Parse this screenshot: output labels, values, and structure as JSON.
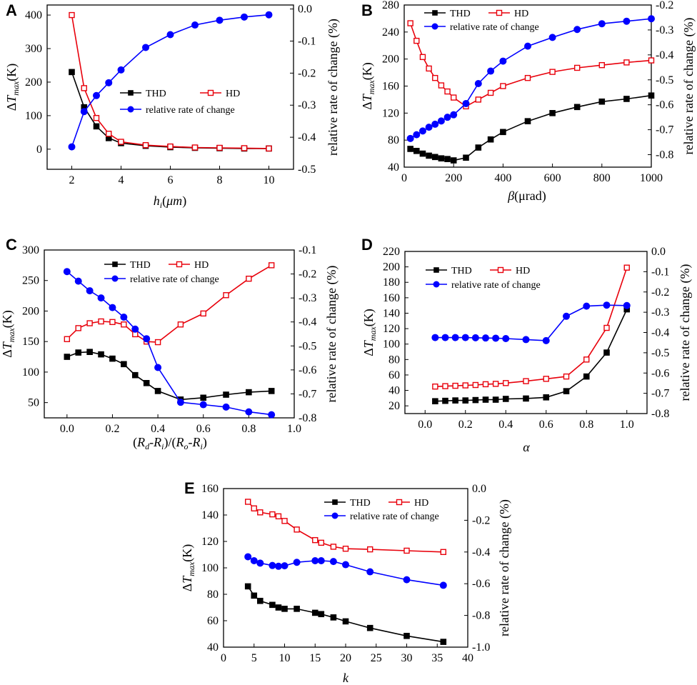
{
  "figure": {
    "colors": {
      "thd": "#000000",
      "hd": "#e8000b",
      "rate": "#0000ff"
    }
  },
  "chart_data": [
    {
      "panel": "A",
      "type": "line",
      "xlabel": "h_i(μm)",
      "ylabel_left": "ΔT_max(K)",
      "ylabel_right": "relative rate of change (%)",
      "xlim": [
        1,
        11
      ],
      "xticks": [
        2,
        4,
        6,
        8,
        10
      ],
      "ylim_left": [
        -60,
        430
      ],
      "yticks_left": [
        0,
        100,
        200,
        300,
        400
      ],
      "ylim_right": [
        -0.5,
        0.0125
      ],
      "yticks_right": [
        -0.5,
        -0.4,
        -0.3,
        -0.2,
        -0.1,
        0.0
      ],
      "legend": [
        "THD",
        "HD",
        "relative rate of change"
      ],
      "legend_position": "center-right",
      "series": [
        {
          "name": "THD",
          "axis": "left",
          "marker": "filled-square",
          "x": [
            2,
            2.5,
            3,
            3.5,
            4,
            5,
            6,
            7,
            8,
            9,
            10
          ],
          "y": [
            230,
            125,
            68,
            33,
            18,
            10,
            6,
            4,
            3,
            2,
            2
          ]
        },
        {
          "name": "HD",
          "axis": "left",
          "marker": "open-square",
          "x": [
            2,
            2.5,
            3,
            3.5,
            4,
            5,
            6,
            7,
            8,
            9,
            10
          ],
          "y": [
            400,
            182,
            93,
            46,
            22,
            12,
            8,
            5,
            4,
            3,
            2
          ]
        },
        {
          "name": "relative rate of change",
          "axis": "right",
          "marker": "circle",
          "x": [
            2,
            2.5,
            3,
            3.5,
            4,
            5,
            6,
            7,
            8,
            9,
            10
          ],
          "y": [
            -0.43,
            -0.32,
            -0.27,
            -0.23,
            -0.19,
            -0.12,
            -0.08,
            -0.05,
            -0.035,
            -0.025,
            -0.018
          ]
        }
      ]
    },
    {
      "panel": "B",
      "type": "line",
      "xlabel": "β(μrad)",
      "ylabel_left": "ΔT_max(K)",
      "ylabel_right": "relative rate of change (%)",
      "xlim": [
        0,
        1000
      ],
      "xticks": [
        0,
        200,
        400,
        600,
        800,
        1000
      ],
      "ylim_left": [
        40,
        280
      ],
      "yticks_left": [
        40,
        80,
        120,
        160,
        200,
        240,
        280
      ],
      "ylim_right": [
        -0.85,
        -0.2
      ],
      "yticks_right": [
        -0.8,
        -0.7,
        -0.6,
        -0.5,
        -0.4,
        -0.3,
        -0.2
      ],
      "legend": [
        "THD",
        "HD",
        "relative rate of change"
      ],
      "legend_position": "top-left",
      "series": [
        {
          "name": "THD",
          "axis": "left",
          "marker": "filled-square",
          "x": [
            25,
            50,
            75,
            100,
            125,
            150,
            175,
            200,
            250,
            300,
            350,
            400,
            500,
            600,
            700,
            800,
            900,
            1000
          ],
          "y": [
            67,
            64,
            60,
            57,
            55,
            53,
            52,
            50,
            54,
            69,
            81,
            92,
            108,
            120,
            129,
            137,
            141,
            146
          ]
        },
        {
          "name": "HD",
          "axis": "left",
          "marker": "open-square",
          "x": [
            25,
            50,
            75,
            100,
            125,
            150,
            175,
            200,
            250,
            300,
            350,
            400,
            500,
            600,
            700,
            800,
            900,
            1000
          ],
          "y": [
            253,
            227,
            203,
            186,
            172,
            161,
            152,
            143,
            130,
            140,
            150,
            160,
            172,
            181,
            187,
            191,
            195,
            198
          ]
        },
        {
          "name": "relative rate of change",
          "axis": "right",
          "marker": "circle",
          "x": [
            25,
            50,
            75,
            100,
            125,
            150,
            175,
            200,
            250,
            300,
            350,
            400,
            500,
            600,
            700,
            800,
            900,
            1000
          ],
          "y": [
            -0.735,
            -0.72,
            -0.705,
            -0.69,
            -0.678,
            -0.665,
            -0.65,
            -0.64,
            -0.595,
            -0.515,
            -0.465,
            -0.425,
            -0.365,
            -0.33,
            -0.298,
            -0.275,
            -0.265,
            -0.255
          ]
        }
      ]
    },
    {
      "panel": "C",
      "type": "line",
      "xlabel": "(R_d-R_i)/(R_o-R_i)",
      "ylabel_left": "ΔT_max(K)",
      "ylabel_right": "relative rate of change (%)",
      "xlim": [
        -0.1,
        1.0
      ],
      "xticks": [
        0.0,
        0.2,
        0.4,
        0.6,
        0.8,
        1.0
      ],
      "ylim_left": [
        25,
        300
      ],
      "yticks_left": [
        50,
        100,
        150,
        200,
        250,
        300
      ],
      "ylim_right": [
        -0.8,
        -0.1
      ],
      "yticks_right": [
        -0.8,
        -0.7,
        -0.6,
        -0.5,
        -0.4,
        -0.3,
        -0.2,
        -0.1
      ],
      "legend": [
        "THD",
        "HD",
        "relative rate of change"
      ],
      "legend_position": "top-center",
      "series": [
        {
          "name": "THD",
          "axis": "left",
          "marker": "filled-square",
          "x": [
            0,
            0.05,
            0.1,
            0.15,
            0.2,
            0.25,
            0.3,
            0.35,
            0.4,
            0.5,
            0.6,
            0.7,
            0.8,
            0.9
          ],
          "y": [
            125,
            132,
            133,
            129,
            122,
            113,
            95,
            82,
            69,
            55,
            58,
            63,
            67,
            69
          ]
        },
        {
          "name": "HD",
          "axis": "left",
          "marker": "open-square",
          "x": [
            0,
            0.05,
            0.1,
            0.15,
            0.2,
            0.25,
            0.3,
            0.35,
            0.4,
            0.5,
            0.6,
            0.7,
            0.8,
            0.9
          ],
          "y": [
            154,
            172,
            180,
            183,
            182,
            178,
            162,
            150,
            149,
            178,
            196,
            226,
            253,
            275
          ]
        },
        {
          "name": "relative rate of change",
          "axis": "right",
          "marker": "circle",
          "x": [
            0,
            0.05,
            0.1,
            0.15,
            0.2,
            0.25,
            0.3,
            0.35,
            0.4,
            0.5,
            0.6,
            0.7,
            0.8,
            0.9
          ],
          "y": [
            -0.19,
            -0.23,
            -0.27,
            -0.3,
            -0.34,
            -0.38,
            -0.43,
            -0.47,
            -0.59,
            -0.735,
            -0.745,
            -0.755,
            -0.775,
            -0.787
          ]
        }
      ]
    },
    {
      "panel": "D",
      "type": "line",
      "xlabel": "α",
      "ylabel_left": "ΔT_max(K)",
      "ylabel_right": "relative rate of change (%)",
      "xlim": [
        -0.1,
        1.1
      ],
      "xticks": [
        0.0,
        0.2,
        0.4,
        0.6,
        0.8,
        1.0
      ],
      "ylim_left": [
        10,
        220
      ],
      "yticks_left": [
        20,
        40,
        60,
        80,
        100,
        120,
        140,
        160,
        180,
        200,
        220
      ],
      "ylim_right": [
        -0.8,
        0.0
      ],
      "yticks_right": [
        -0.8,
        -0.7,
        -0.6,
        -0.5,
        -0.4,
        -0.3,
        -0.2,
        -0.1,
        0.0
      ],
      "legend": [
        "THD",
        "HD",
        "relative rate of change"
      ],
      "legend_position": "top-left",
      "series": [
        {
          "name": "THD",
          "axis": "left",
          "marker": "filled-square",
          "x": [
            0.05,
            0.1,
            0.15,
            0.2,
            0.25,
            0.3,
            0.35,
            0.4,
            0.5,
            0.6,
            0.7,
            0.8,
            0.9,
            1.0
          ],
          "y": [
            26,
            26.5,
            27,
            27,
            27.5,
            28,
            28,
            29,
            29.5,
            31,
            39,
            58,
            89,
            145
          ]
        },
        {
          "name": "HD",
          "axis": "left",
          "marker": "open-square",
          "x": [
            0.05,
            0.1,
            0.15,
            0.2,
            0.25,
            0.3,
            0.35,
            0.4,
            0.5,
            0.6,
            0.7,
            0.8,
            0.9,
            1.0
          ],
          "y": [
            45,
            45.5,
            46,
            46.5,
            47,
            48,
            48.5,
            49.5,
            52,
            55,
            58,
            80,
            121,
            199
          ]
        },
        {
          "name": "relative rate of change",
          "axis": "right",
          "marker": "circle",
          "x": [
            0.05,
            0.1,
            0.15,
            0.2,
            0.25,
            0.3,
            0.35,
            0.4,
            0.5,
            0.6,
            0.7,
            0.8,
            0.9,
            1.0
          ],
          "y": [
            -0.425,
            -0.425,
            -0.425,
            -0.425,
            -0.426,
            -0.427,
            -0.428,
            -0.43,
            -0.435,
            -0.44,
            -0.32,
            -0.27,
            -0.265,
            -0.267
          ]
        }
      ]
    },
    {
      "panel": "E",
      "type": "line",
      "xlabel": "k",
      "ylabel_left": "ΔT_max(K)",
      "ylabel_right": "relative rate of change (%)",
      "xlim": [
        0,
        40
      ],
      "xticks": [
        0,
        5,
        10,
        15,
        20,
        25,
        30,
        35,
        40
      ],
      "ylim_left": [
        40,
        160
      ],
      "yticks_left": [
        40,
        60,
        80,
        100,
        120,
        140,
        160
      ],
      "ylim_right": [
        -1.0,
        0.0
      ],
      "yticks_right": [
        -1.0,
        -0.8,
        -0.6,
        -0.4,
        -0.2,
        0.0
      ],
      "legend": [
        "THD",
        "HD",
        "relative rate of change"
      ],
      "legend_position": "top-right",
      "series": [
        {
          "name": "THD",
          "axis": "left",
          "marker": "filled-square",
          "x": [
            4,
            5,
            6,
            8,
            9,
            10,
            12,
            15,
            16,
            18,
            20,
            24,
            30,
            36
          ],
          "y": [
            86,
            79,
            75,
            72,
            70,
            69,
            69,
            66,
            65,
            62.5,
            59.5,
            54.5,
            48.5,
            44
          ]
        },
        {
          "name": "HD",
          "axis": "left",
          "marker": "open-square",
          "x": [
            4,
            5,
            6,
            8,
            9,
            10,
            12,
            15,
            16,
            18,
            20,
            24,
            30,
            36
          ],
          "y": [
            150,
            145,
            142,
            140.5,
            139,
            135.5,
            129,
            121,
            119,
            116,
            114.5,
            114,
            113,
            112
          ]
        },
        {
          "name": "relative rate of change",
          "axis": "right",
          "marker": "circle",
          "x": [
            4,
            5,
            6,
            8,
            9,
            10,
            12,
            15,
            16,
            18,
            20,
            24,
            30,
            36
          ],
          "y": [
            -0.43,
            -0.455,
            -0.47,
            -0.485,
            -0.49,
            -0.487,
            -0.465,
            -0.455,
            -0.455,
            -0.46,
            -0.48,
            -0.525,
            -0.575,
            -0.61
          ]
        }
      ]
    }
  ]
}
